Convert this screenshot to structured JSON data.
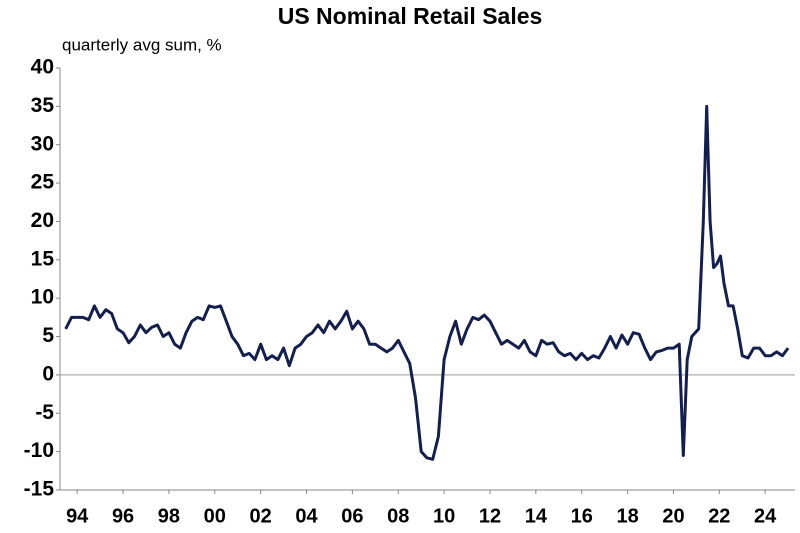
{
  "chart_data": {
    "type": "line",
    "title": "US Nominal Retail Sales",
    "subtitle": "quarterly avg sum, %",
    "x": [
      1993.5,
      1993.75,
      1994,
      1994.25,
      1994.5,
      1994.75,
      1995,
      1995.25,
      1995.5,
      1995.75,
      1996,
      1996.25,
      1996.5,
      1996.75,
      1997,
      1997.25,
      1997.5,
      1997.75,
      1998,
      1998.25,
      1998.5,
      1998.75,
      1999,
      1999.25,
      1999.5,
      1999.75,
      2000,
      2000.25,
      2000.5,
      2000.75,
      2001,
      2001.25,
      2001.5,
      2001.75,
      2002,
      2002.25,
      2002.5,
      2002.75,
      2003,
      2003.25,
      2003.5,
      2003.75,
      2004,
      2004.25,
      2004.5,
      2004.75,
      2005,
      2005.25,
      2005.5,
      2005.75,
      2006,
      2006.25,
      2006.5,
      2006.75,
      2007,
      2007.25,
      2007.5,
      2007.75,
      2008,
      2008.25,
      2008.5,
      2008.75,
      2009,
      2009.25,
      2009.5,
      2009.75,
      2010,
      2010.25,
      2010.5,
      2010.75,
      2011,
      2011.25,
      2011.5,
      2011.75,
      2012,
      2012.25,
      2012.5,
      2012.75,
      2013,
      2013.25,
      2013.5,
      2013.75,
      2014,
      2014.25,
      2014.5,
      2014.75,
      2015,
      2015.25,
      2015.5,
      2015.75,
      2016,
      2016.25,
      2016.5,
      2016.75,
      2017,
      2017.25,
      2017.5,
      2017.75,
      2018,
      2018.25,
      2018.5,
      2018.75,
      2019,
      2019.25,
      2019.5,
      2019.75,
      2020,
      2020.25,
      2020.43,
      2020.6,
      2020.8,
      2021.1,
      2021.3,
      2021.45,
      2021.6,
      2021.75,
      2021.9,
      2022.05,
      2022.2,
      2022.4,
      2022.6,
      2022.8,
      2023,
      2023.25,
      2023.5,
      2023.75,
      2024,
      2024.25,
      2024.5,
      2024.75,
      2025
    ],
    "series": [
      {
        "name": "US Nominal Retail Sales",
        "color": "#13204f",
        "values": [
          6,
          7.5,
          7.5,
          7.5,
          7.2,
          9,
          7.5,
          8.5,
          8,
          6,
          5.5,
          4.2,
          5,
          6.5,
          5.5,
          6.2,
          6.5,
          5,
          5.5,
          4,
          3.5,
          5.5,
          7,
          7.5,
          7.2,
          9,
          8.8,
          9,
          7,
          5,
          4,
          2.5,
          2.8,
          2,
          4,
          2,
          2.5,
          2,
          3.5,
          1.2,
          3.5,
          4,
          5,
          5.5,
          6.5,
          5.5,
          7,
          6,
          7,
          8.3,
          6,
          7,
          6,
          4,
          4,
          3.5,
          3,
          3.5,
          4.5,
          3,
          1.5,
          -3,
          -10,
          -10.8,
          -11,
          -8,
          2,
          5,
          7,
          4,
          6,
          7.5,
          7.2,
          7.8,
          7,
          5.5,
          4,
          4.5,
          4,
          3.5,
          4.5,
          3,
          2.5,
          4.5,
          4,
          4.2,
          3,
          2.5,
          2.8,
          2,
          2.8,
          2,
          2.5,
          2.2,
          3.5,
          5,
          3.5,
          5.2,
          4,
          5.5,
          5.3,
          3.5,
          2,
          3,
          3.2,
          3.5,
          3.5,
          4,
          -10.5,
          2,
          5,
          6,
          20,
          35,
          20,
          14,
          14.5,
          15.5,
          12,
          9,
          9,
          6,
          2.5,
          2.2,
          3.5,
          3.5,
          2.5,
          2.5,
          3,
          2.5,
          3.5
        ]
      }
    ],
    "xlim": [
      1993.25,
      2025.3
    ],
    "xticks": [
      {
        "value": 1994,
        "label": "94"
      },
      {
        "value": 1996,
        "label": "96"
      },
      {
        "value": 1998,
        "label": "98"
      },
      {
        "value": 2000,
        "label": "00"
      },
      {
        "value": 2002,
        "label": "02"
      },
      {
        "value": 2004,
        "label": "04"
      },
      {
        "value": 2006,
        "label": "06"
      },
      {
        "value": 2008,
        "label": "08"
      },
      {
        "value": 2010,
        "label": "10"
      },
      {
        "value": 2012,
        "label": "12"
      },
      {
        "value": 2014,
        "label": "14"
      },
      {
        "value": 2016,
        "label": "16"
      },
      {
        "value": 2018,
        "label": "18"
      },
      {
        "value": 2020,
        "label": "20"
      },
      {
        "value": 2022,
        "label": "22"
      },
      {
        "value": 2024,
        "label": "24"
      }
    ],
    "ylim": [
      -15,
      40
    ],
    "yticks": [
      -15,
      -10,
      -5,
      0,
      5,
      10,
      15,
      20,
      25,
      30,
      35,
      40
    ]
  }
}
